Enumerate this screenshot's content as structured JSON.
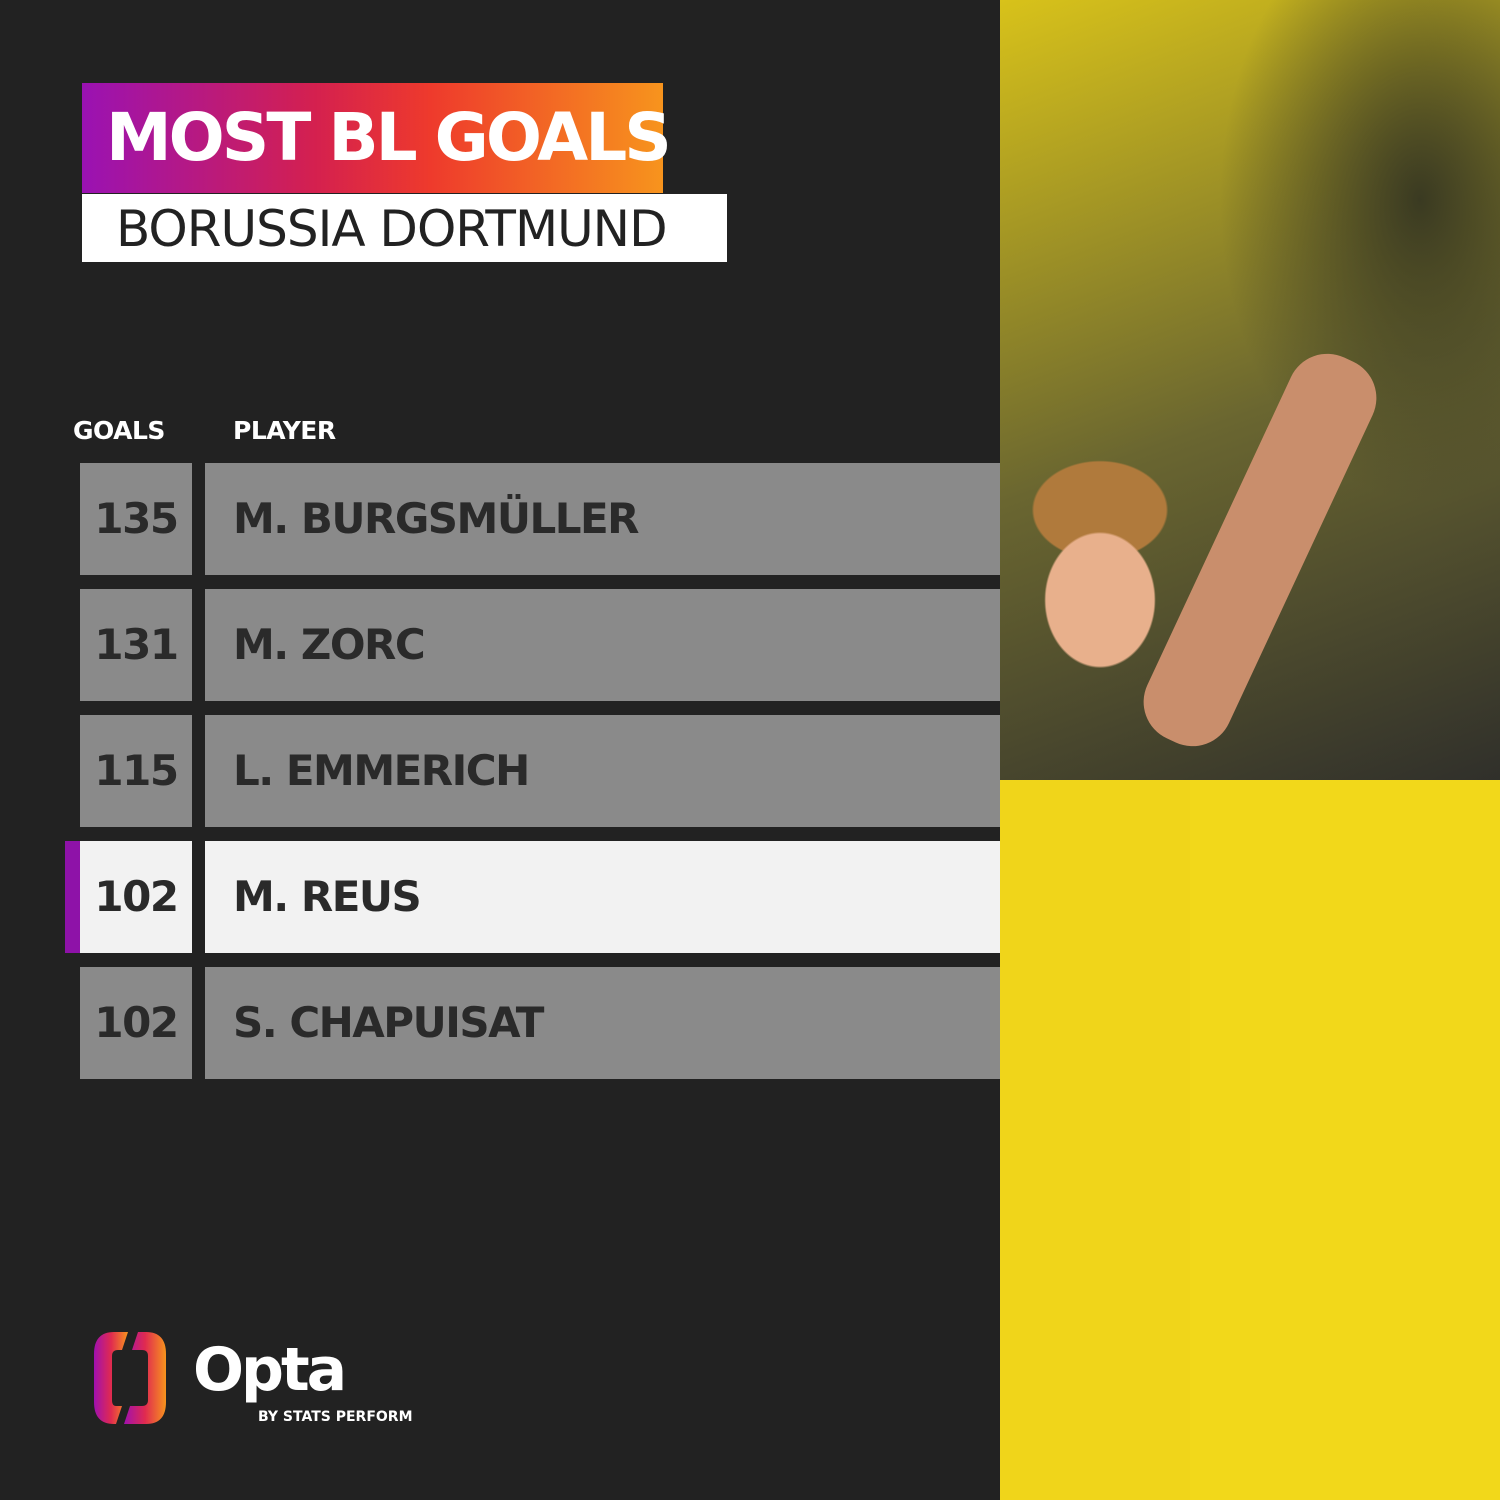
{
  "title": "MOST BL GOALS",
  "subtitle": "BORUSSIA DORTMUND",
  "headers": {
    "goals": "GOALS",
    "player": "PLAYER"
  },
  "rows": [
    {
      "goals": "135",
      "player": "M. BURGSMÜLLER",
      "highlighted": false
    },
    {
      "goals": "131",
      "player": "M. ZORC",
      "highlighted": false
    },
    {
      "goals": "115",
      "player": "L. EMMERICH",
      "highlighted": false
    },
    {
      "goals": "102",
      "player": "M. REUS",
      "highlighted": true
    },
    {
      "goals": "102",
      "player": "S. CHAPUISAT",
      "highlighted": false
    }
  ],
  "brand": {
    "name": "Opta",
    "tagline": "BY STATS PERFORM"
  },
  "colors": {
    "background": "#222222",
    "row": "#8a8a8a",
    "highlight_row": "#f2f2f2",
    "highlight_accent": "#8e12a8",
    "gradient_start": "#9a12b3",
    "gradient_end": "#f7941d",
    "kit_yellow": "#f0d51a"
  }
}
